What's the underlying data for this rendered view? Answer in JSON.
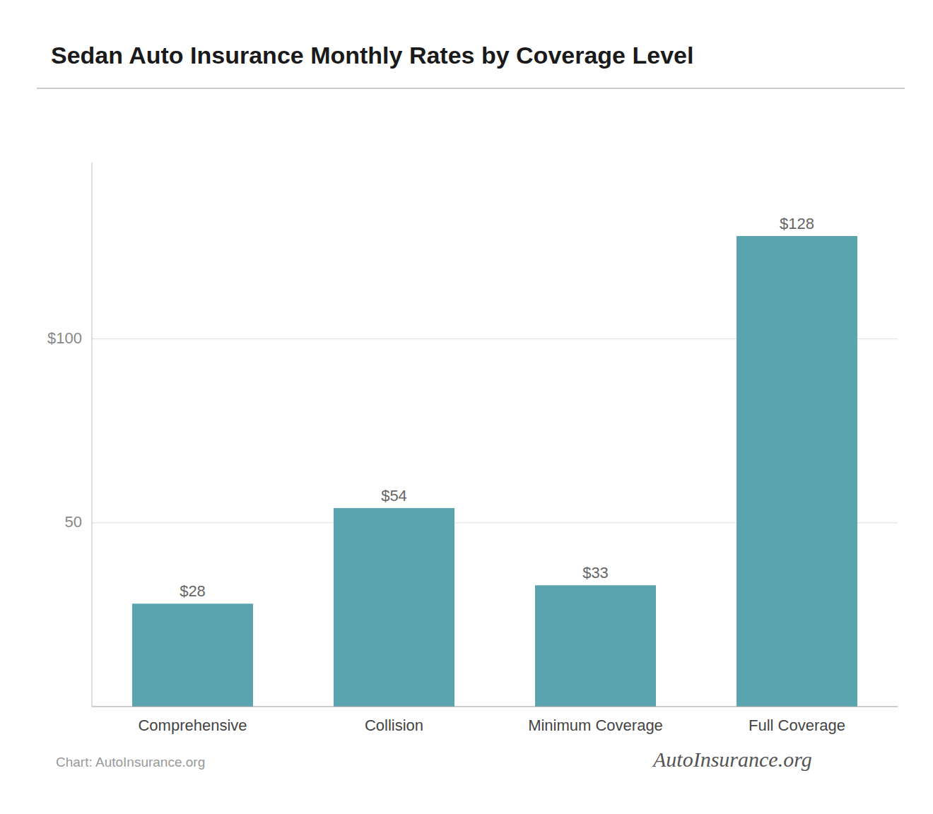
{
  "chart_data": {
    "type": "bar",
    "title": "Sedan Auto Insurance Monthly Rates by Coverage Level",
    "categories": [
      "Comprehensive",
      "Collision",
      "Minimum Coverage",
      "Full Coverage"
    ],
    "values": [
      28,
      54,
      33,
      128
    ],
    "value_labels": [
      "$28",
      "$54",
      "$33",
      "$128"
    ],
    "data_labels": true,
    "color": "#5aa4af",
    "ylim": [
      0,
      148
    ],
    "yticks": [
      50,
      {
        "value": 100,
        "label": "$100"
      }
    ],
    "grid": true,
    "annotations": [
      "Chart: AutoInsurance.org",
      "AutoInsurance.org"
    ]
  }
}
